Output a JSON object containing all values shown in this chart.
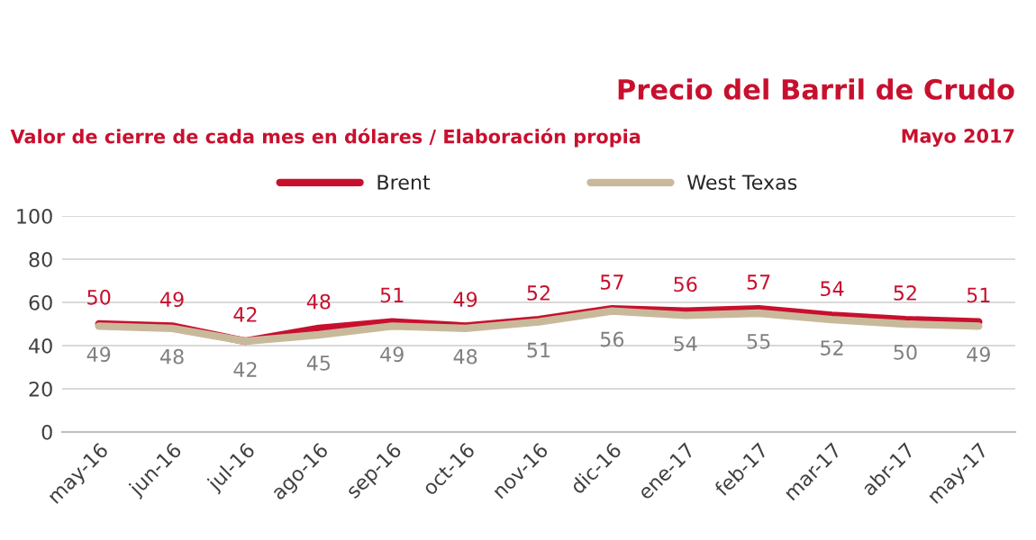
{
  "chart_data": {
    "type": "line",
    "title": "Precio del Barril de Crudo",
    "subtitle": "Valor de cierre de cada mes en dólares / Elaboración propia",
    "annotations": [
      "Mayo 2017"
    ],
    "categories": [
      "may-16",
      "jun-16",
      "jul-16",
      "ago-16",
      "sep-16",
      "oct-16",
      "nov-16",
      "dic-16",
      "ene-17",
      "feb-17",
      "mar-17",
      "abr-17",
      "may-17"
    ],
    "series": [
      {
        "name": "Brent",
        "color": "#c8102e",
        "values": [
          50,
          49,
          42,
          48,
          51,
          49,
          52,
          57,
          56,
          57,
          54,
          52,
          51
        ]
      },
      {
        "name": "West Texas",
        "color": "#c9b99b",
        "values": [
          49,
          48,
          42,
          45,
          49,
          48,
          51,
          56,
          54,
          55,
          52,
          50,
          49
        ]
      }
    ],
    "ylim": [
      0,
      100
    ],
    "yticks": [
      0,
      20,
      40,
      60,
      80,
      100
    ],
    "grid": "y",
    "legend": "top",
    "data_labels": true,
    "marker": "none",
    "line_style": "solid"
  }
}
